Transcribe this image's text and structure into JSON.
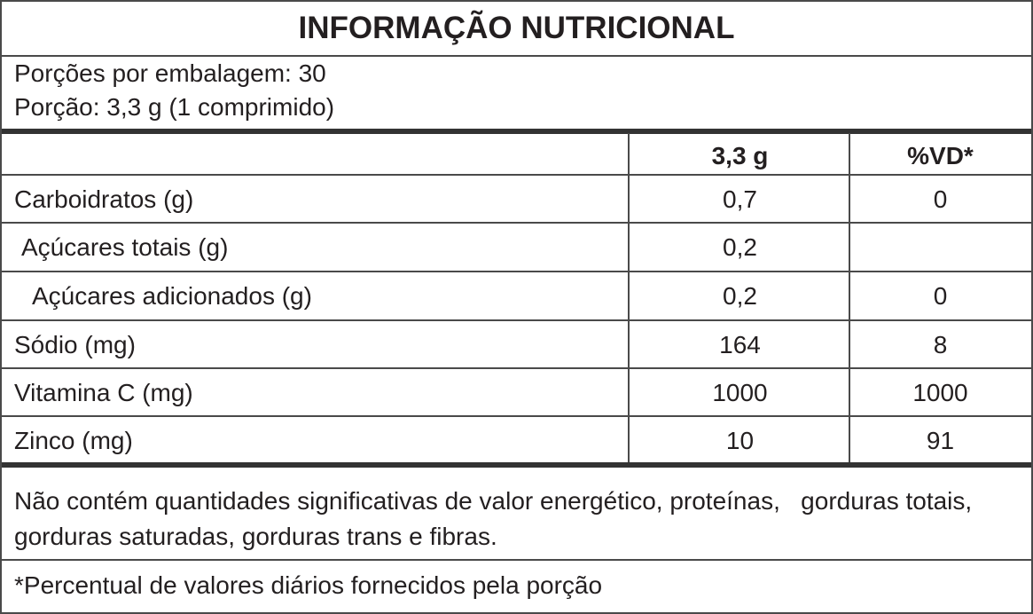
{
  "title": "INFORMAÇÃO NUTRICIONAL",
  "servings_per_package": "Porções por embalagem: 30",
  "serving_size": "Porção: 3,3 g (1 comprimido)",
  "table": {
    "header": {
      "amount": "3,3 g",
      "vd": "%VD*"
    },
    "rows": [
      {
        "name": "Carboidratos (g)",
        "amount": "0,7",
        "vd": "0"
      },
      {
        "name": "Açúcares totais (g)",
        "amount": "0,2"
      },
      {
        "name": "Açúcares adicionados (g)",
        "amount": "0,2",
        "vd": "0"
      },
      {
        "name": "Sódio (mg)",
        "amount": "164",
        "vd": "8"
      },
      {
        "name": "Vitamina C (mg)",
        "amount": "1000",
        "vd": "1000"
      },
      {
        "name": "Zinco (mg)",
        "amount": "10",
        "vd": "91"
      }
    ]
  },
  "note": "Não contém quantidades significativas de valor energético, proteínas,   gorduras totais, gorduras saturadas, gorduras trans e fibras.",
  "footnote": "*Percentual de valores diários fornecidos pela porção"
}
